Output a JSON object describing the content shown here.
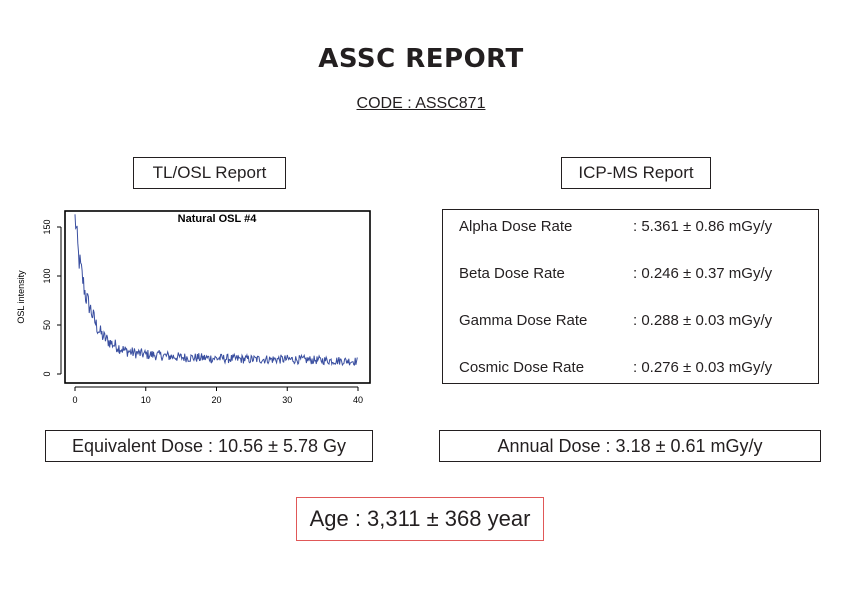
{
  "report": {
    "title": "ASSC REPORT",
    "code": "CODE : ASSC871"
  },
  "tl_osl": {
    "label": "TL/OSL Report",
    "equivalent_dose": "Equivalent Dose : 10.56 ± 5.78 Gy"
  },
  "icp_ms": {
    "label": "ICP-MS Report",
    "rows": [
      {
        "name": "Alpha Dose Rate",
        "value": ": 5.361 ± 0.86 mGy/y"
      },
      {
        "name": "Beta Dose Rate",
        "value": ": 0.246 ± 0.37 mGy/y"
      },
      {
        "name": "Gamma Dose Rate",
        "value": ": 0.288 ± 0.03 mGy/y"
      },
      {
        "name": "Cosmic Dose Rate",
        "value": ": 0.276 ± 0.03 mGy/y"
      }
    ],
    "annual_dose": "Annual Dose : 3.18 ± 0.61 mGy/y"
  },
  "age": "Age : 3,311 ± 368 year",
  "chart_data": {
    "type": "line",
    "title": "Natural OSL #4",
    "xlabel": "",
    "ylabel": "OSL intensity",
    "xlim": [
      0,
      40
    ],
    "ylim": [
      0,
      160
    ],
    "xticks": [
      0,
      10,
      20,
      30,
      40
    ],
    "yticks": [
      0,
      50,
      100,
      150
    ],
    "line_color": "#3a4fa0",
    "x": [
      0,
      0.5,
      1,
      1.5,
      2,
      2.5,
      3,
      3.5,
      4,
      5,
      6,
      7,
      8,
      10,
      12,
      15,
      20,
      25,
      30,
      35,
      40
    ],
    "y": [
      163,
      120,
      100,
      80,
      70,
      60,
      50,
      43,
      38,
      32,
      28,
      24,
      22,
      20,
      19,
      17,
      16,
      15,
      15,
      14,
      13
    ]
  }
}
